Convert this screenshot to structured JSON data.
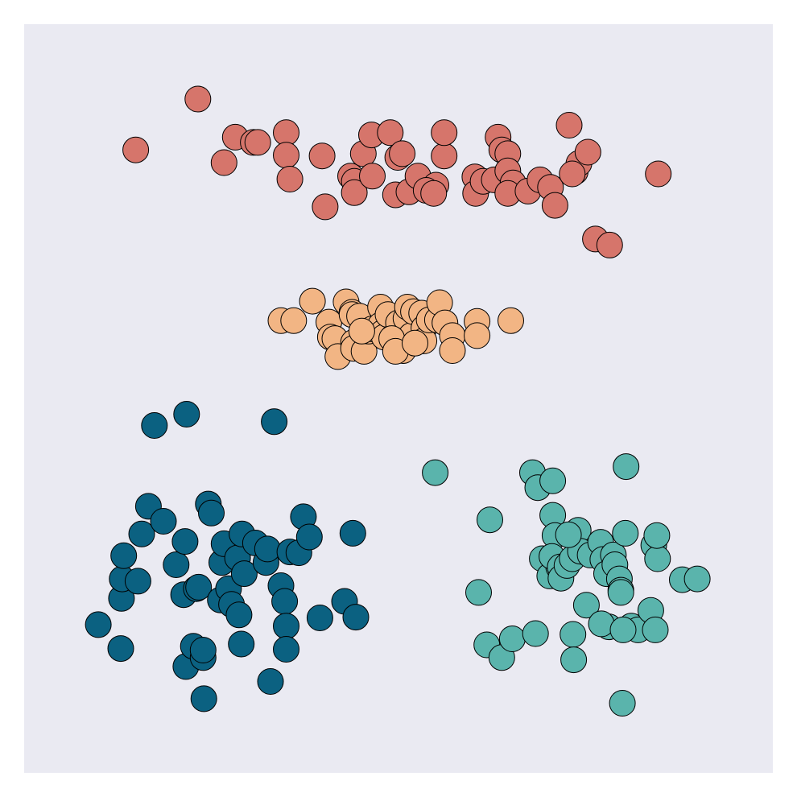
{
  "chart_data": {
    "type": "scatter",
    "title": "",
    "xlabel": "",
    "ylabel": "",
    "xlim": [
      0,
      10
    ],
    "ylim": [
      0,
      10
    ],
    "grid": false,
    "axes_visible": false,
    "background_color": "#eaeaf2",
    "marker_edge_color": "#000000",
    "series": [
      {
        "color": "#d6756b",
        "points": [
          [
            2.32,
            9.0
          ],
          [
            1.49,
            8.32
          ],
          [
            2.67,
            8.15
          ],
          [
            2.82,
            8.49
          ],
          [
            3.06,
            8.42
          ],
          [
            3.12,
            8.42
          ],
          [
            3.5,
            8.55
          ],
          [
            3.5,
            8.25
          ],
          [
            3.55,
            7.93
          ],
          [
            3.98,
            8.24
          ],
          [
            4.02,
            7.56
          ],
          [
            4.36,
            7.97
          ],
          [
            4.41,
            7.9
          ],
          [
            4.41,
            7.75
          ],
          [
            4.53,
            8.27
          ],
          [
            4.64,
            8.52
          ],
          [
            4.65,
            7.97
          ],
          [
            4.89,
            8.55
          ],
          [
            4.96,
            7.72
          ],
          [
            4.99,
            8.22
          ],
          [
            5.05,
            8.27
          ],
          [
            5.14,
            7.76
          ],
          [
            5.26,
            7.97
          ],
          [
            5.5,
            7.85
          ],
          [
            5.37,
            7.78
          ],
          [
            5.47,
            7.74
          ],
          [
            5.61,
            8.24
          ],
          [
            5.61,
            8.55
          ],
          [
            6.02,
            7.96
          ],
          [
            6.03,
            7.74
          ],
          [
            6.13,
            7.9
          ],
          [
            6.28,
            7.92
          ],
          [
            6.33,
            8.49
          ],
          [
            6.38,
            8.32
          ],
          [
            6.46,
            8.27
          ],
          [
            6.46,
            8.04
          ],
          [
            6.53,
            7.88
          ],
          [
            6.46,
            7.74
          ],
          [
            6.73,
            7.77
          ],
          [
            6.89,
            7.92
          ],
          [
            7.03,
            7.82
          ],
          [
            7.09,
            7.58
          ],
          [
            7.28,
            8.65
          ],
          [
            7.36,
            8.03
          ],
          [
            7.41,
            8.14
          ],
          [
            7.53,
            8.29
          ],
          [
            7.32,
            8.0
          ],
          [
            7.63,
            7.13
          ],
          [
            7.82,
            7.05
          ],
          [
            8.47,
            8.0
          ]
        ]
      },
      {
        "color": "#f2b584",
        "points": [
          [
            3.43,
            6.04
          ],
          [
            3.6,
            6.04
          ],
          [
            3.85,
            6.3
          ],
          [
            4.07,
            6.02
          ],
          [
            4.09,
            5.82
          ],
          [
            4.15,
            5.8
          ],
          [
            4.19,
            5.56
          ],
          [
            4.3,
            6.29
          ],
          [
            4.38,
            6.15
          ],
          [
            4.38,
            6.12
          ],
          [
            4.4,
            5.75
          ],
          [
            4.4,
            5.67
          ],
          [
            4.48,
            6.1
          ],
          [
            4.54,
            5.63
          ],
          [
            4.6,
            5.9
          ],
          [
            4.65,
            5.93
          ],
          [
            4.76,
            6.22
          ],
          [
            4.76,
            5.98
          ],
          [
            4.79,
            5.88
          ],
          [
            4.81,
            5.82
          ],
          [
            4.86,
            6.12
          ],
          [
            4.93,
            5.82
          ],
          [
            4.97,
            5.86
          ],
          [
            5.0,
            6.01
          ],
          [
            5.06,
            5.64
          ],
          [
            5.1,
            6.07
          ],
          [
            5.12,
            6.22
          ],
          [
            5.17,
            5.84
          ],
          [
            5.2,
            6.16
          ],
          [
            5.31,
            6.14
          ],
          [
            5.34,
            5.94
          ],
          [
            5.34,
            5.77
          ],
          [
            5.41,
            6.05
          ],
          [
            5.52,
            6.05
          ],
          [
            5.55,
            6.28
          ],
          [
            5.62,
            6.01
          ],
          [
            5.72,
            5.84
          ],
          [
            5.72,
            5.64
          ],
          [
            6.05,
            6.03
          ],
          [
            6.05,
            5.84
          ],
          [
            6.5,
            6.04
          ],
          [
            4.91,
            5.8
          ],
          [
            4.96,
            5.63
          ],
          [
            4.51,
            5.9
          ],
          [
            5.22,
            5.74
          ]
        ]
      },
      {
        "color": "#5ab4ac",
        "points": [
          [
            5.49,
            4.01
          ],
          [
            6.22,
            3.38
          ],
          [
            6.07,
            2.41
          ],
          [
            6.18,
            1.71
          ],
          [
            6.38,
            1.54
          ],
          [
            6.52,
            1.79
          ],
          [
            6.83,
            1.86
          ],
          [
            6.79,
            4.01
          ],
          [
            6.86,
            3.81
          ],
          [
            7.06,
            3.9
          ],
          [
            7.06,
            3.44
          ],
          [
            7.09,
            3.17
          ],
          [
            6.92,
            2.86
          ],
          [
            7.02,
            2.63
          ],
          [
            7.14,
            2.75
          ],
          [
            7.05,
            2.89
          ],
          [
            7.16,
            2.75
          ],
          [
            7.17,
            2.6
          ],
          [
            7.25,
            2.77
          ],
          [
            7.32,
            2.86
          ],
          [
            7.4,
            3.24
          ],
          [
            7.33,
            1.85
          ],
          [
            7.34,
            1.51
          ],
          [
            7.51,
            2.24
          ],
          [
            7.43,
            2.96
          ],
          [
            7.56,
            2.91
          ],
          [
            7.7,
            3.08
          ],
          [
            7.73,
            2.85
          ],
          [
            7.78,
            2.66
          ],
          [
            7.87,
            2.91
          ],
          [
            7.89,
            2.78
          ],
          [
            7.95,
            2.59
          ],
          [
            7.81,
            1.95
          ],
          [
            7.71,
            1.99
          ],
          [
            7.97,
            2.44
          ],
          [
            7.97,
            2.41
          ],
          [
            8.03,
            3.2
          ],
          [
            8.04,
            4.09
          ],
          [
            8.11,
            1.96
          ],
          [
            8.2,
            1.91
          ],
          [
            8.37,
            2.17
          ],
          [
            8.41,
            3.04
          ],
          [
            8.46,
            2.86
          ],
          [
            8.45,
            3.17
          ],
          [
            8.43,
            1.91
          ],
          [
            8.79,
            2.58
          ],
          [
            8.99,
            2.59
          ],
          [
            7.99,
            0.93
          ],
          [
            8.0,
            1.91
          ],
          [
            7.27,
            3.18
          ]
        ]
      },
      {
        "color": "#0b6181",
        "points": [
          [
            0.99,
            1.98
          ],
          [
            1.29,
            1.66
          ],
          [
            1.3,
            2.33
          ],
          [
            1.31,
            2.59
          ],
          [
            1.33,
            2.9
          ],
          [
            1.52,
            2.56
          ],
          [
            1.57,
            3.19
          ],
          [
            1.66,
            3.56
          ],
          [
            1.74,
            4.64
          ],
          [
            1.86,
            3.36
          ],
          [
            2.03,
            2.78
          ],
          [
            2.15,
            3.09
          ],
          [
            2.13,
            2.38
          ],
          [
            2.17,
            4.79
          ],
          [
            2.16,
            1.42
          ],
          [
            2.3,
            2.46
          ],
          [
            2.33,
            2.48
          ],
          [
            2.26,
            1.69
          ],
          [
            2.39,
            1.54
          ],
          [
            2.4,
            0.99
          ],
          [
            2.46,
            3.59
          ],
          [
            2.5,
            3.47
          ],
          [
            2.62,
            2.31
          ],
          [
            2.64,
            2.81
          ],
          [
            2.67,
            3.06
          ],
          [
            2.73,
            2.46
          ],
          [
            2.77,
            2.25
          ],
          [
            2.85,
            2.87
          ],
          [
            2.87,
            2.11
          ],
          [
            2.9,
            1.72
          ],
          [
            2.91,
            3.19
          ],
          [
            2.94,
            2.66
          ],
          [
            3.09,
            3.07
          ],
          [
            3.23,
            2.81
          ],
          [
            3.25,
            2.99
          ],
          [
            3.29,
            1.22
          ],
          [
            3.34,
            4.69
          ],
          [
            3.43,
            2.5
          ],
          [
            3.48,
            2.29
          ],
          [
            3.5,
            1.96
          ],
          [
            3.5,
            1.65
          ],
          [
            3.55,
            2.95
          ],
          [
            3.67,
            2.94
          ],
          [
            3.73,
            3.42
          ],
          [
            3.81,
            3.15
          ],
          [
            3.95,
            2.07
          ],
          [
            4.28,
            2.29
          ],
          [
            4.43,
            2.08
          ],
          [
            4.39,
            3.2
          ],
          [
            2.39,
            1.64
          ]
        ]
      }
    ]
  }
}
